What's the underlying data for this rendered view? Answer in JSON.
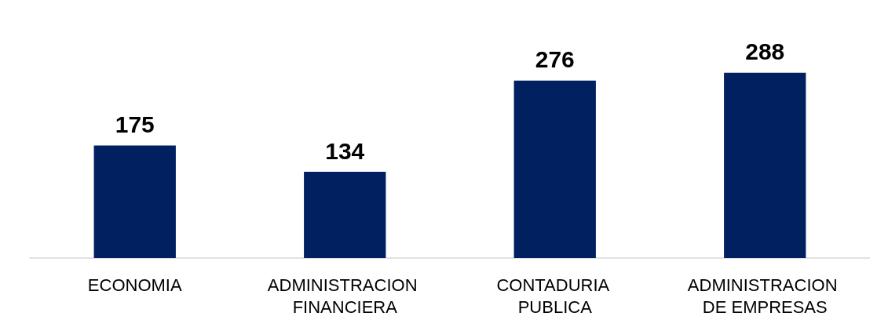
{
  "chart_data": {
    "type": "bar",
    "categories": [
      "ECONOMIA",
      "ADMINISTRACION FINANCIERA",
      "CONTADURIA PUBLICA",
      "ADMINISTRACION DE EMPRESAS"
    ],
    "values": [
      175,
      134,
      276,
      288
    ],
    "color": "#002060",
    "data_labels": true
  }
}
